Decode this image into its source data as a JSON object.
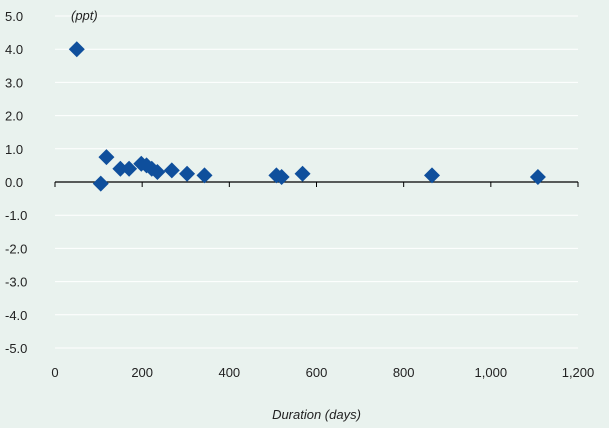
{
  "chart_data": {
    "type": "scatter",
    "title": "",
    "xlabel": "Duration (days)",
    "ylabel": "",
    "unit_label": "(ppt)",
    "xlim": [
      0,
      1200
    ],
    "ylim": [
      -5,
      5
    ],
    "x_ticks": [
      0,
      200,
      400,
      600,
      800,
      1000,
      1200
    ],
    "x_tick_labels": [
      "0",
      "200",
      "400",
      "600",
      "800",
      "1,000",
      "1,200"
    ],
    "y_ticks": [
      5,
      4,
      3,
      2,
      1,
      0,
      -1,
      -2,
      -3,
      -4,
      -5
    ],
    "y_tick_labels": [
      "5.0",
      "4.0",
      "3.0",
      "2.0",
      "1.0",
      "0.0",
      "-1.0",
      "-2.0",
      "-3.0",
      "-4.0",
      "-5.0"
    ],
    "grid": true,
    "legend": "none",
    "marker": "diamond",
    "color": "#0f4f9c",
    "points": [
      {
        "x": 50,
        "y": 4.0
      },
      {
        "x": 105,
        "y": -0.05
      },
      {
        "x": 118,
        "y": 0.75
      },
      {
        "x": 150,
        "y": 0.4
      },
      {
        "x": 170,
        "y": 0.4
      },
      {
        "x": 198,
        "y": 0.55
      },
      {
        "x": 210,
        "y": 0.5
      },
      {
        "x": 222,
        "y": 0.4
      },
      {
        "x": 235,
        "y": 0.3
      },
      {
        "x": 268,
        "y": 0.35
      },
      {
        "x": 303,
        "y": 0.25
      },
      {
        "x": 343,
        "y": 0.2
      },
      {
        "x": 508,
        "y": 0.2
      },
      {
        "x": 520,
        "y": 0.15
      },
      {
        "x": 568,
        "y": 0.25
      },
      {
        "x": 865,
        "y": 0.2
      },
      {
        "x": 1108,
        "y": 0.15
      }
    ]
  }
}
